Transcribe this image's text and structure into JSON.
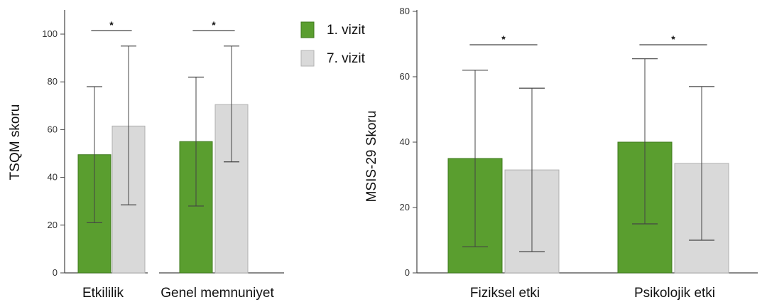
{
  "colors": {
    "visit1": "#5a9e2f",
    "visit7": "#d9d9d9",
    "axis": "#444444",
    "error": "#444444"
  },
  "legend": {
    "items": [
      "1. vizit",
      "7. vizit"
    ],
    "placement": "top-center"
  },
  "chart_data": [
    {
      "type": "bar",
      "ylabel": "TSQM skoru",
      "xlabel": "",
      "ylim": [
        0,
        110
      ],
      "yticks": [
        0,
        20,
        40,
        60,
        80,
        100
      ],
      "categories": [
        "Etkililik",
        "Genel memnuniyet"
      ],
      "series": [
        {
          "name": "1. vizit",
          "values": [
            49.5,
            55
          ],
          "err_low": [
            21,
            28
          ],
          "err_high": [
            78,
            82
          ]
        },
        {
          "name": "7. vizit",
          "values": [
            61.5,
            70.5
          ],
          "err_low": [
            28.5,
            46.5
          ],
          "err_high": [
            95,
            95
          ]
        }
      ],
      "significance": [
        "*",
        "*"
      ]
    },
    {
      "type": "bar",
      "ylabel": "MSIS-29 Skoru",
      "xlabel": "",
      "ylim": [
        0,
        80
      ],
      "yticks": [
        0,
        20,
        40,
        60,
        80
      ],
      "categories": [
        "Fiziksel etki",
        "Psikolojik etki"
      ],
      "series": [
        {
          "name": "1. vizit",
          "values": [
            35,
            40
          ],
          "err_low": [
            8,
            15
          ],
          "err_high": [
            62,
            65.5
          ]
        },
        {
          "name": "7. vizit",
          "values": [
            31.5,
            33.5
          ],
          "err_low": [
            6.5,
            10
          ],
          "err_high": [
            56.5,
            57
          ]
        }
      ],
      "significance": [
        "*",
        "*"
      ]
    }
  ]
}
